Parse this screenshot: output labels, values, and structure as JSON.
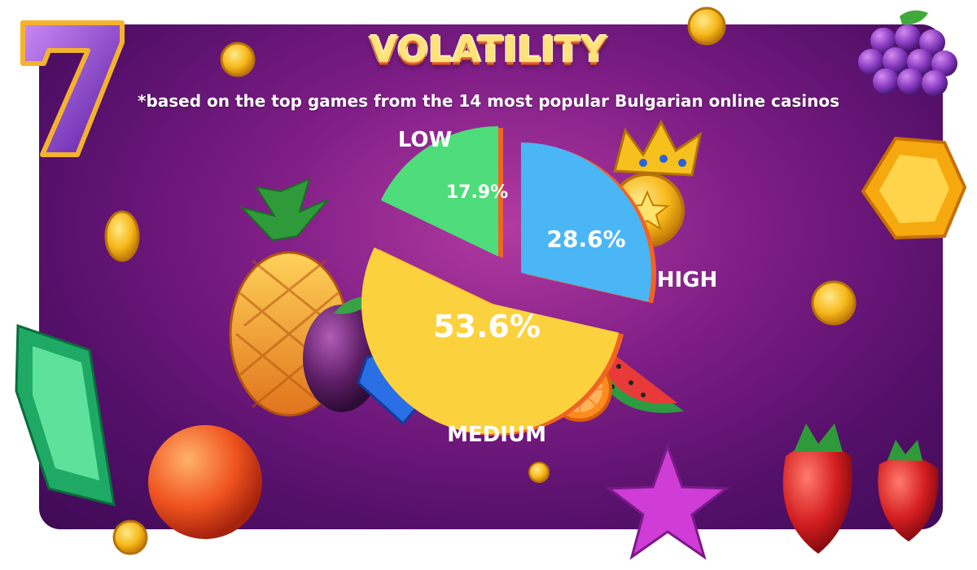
{
  "title": "VOLATILITY",
  "subtitle": "*based on the top games from the 14 most popular Bulgarian online casinos",
  "colors": {
    "low": "#4fdc7a",
    "high": "#4ab6f6",
    "medium": "#fbd23d",
    "edge": "#f06424"
  },
  "chart_data": {
    "type": "pie",
    "title": "VOLATILITY",
    "slices": [
      {
        "label": "LOW",
        "value": 17.9,
        "display": "17.9%"
      },
      {
        "label": "HIGH",
        "value": 28.6,
        "display": "28.6%"
      },
      {
        "label": "MEDIUM",
        "value": 53.6,
        "display": "53.6%"
      }
    ]
  },
  "decorations": [
    "seven-icon",
    "grapes-icon",
    "pineapple-icon",
    "plum-icon",
    "diamond-icon",
    "crown-icon",
    "gem-icon",
    "watermelon-icon",
    "orange-icon",
    "peach-icon",
    "star-icon",
    "strawberry-icon",
    "coin-icon"
  ]
}
